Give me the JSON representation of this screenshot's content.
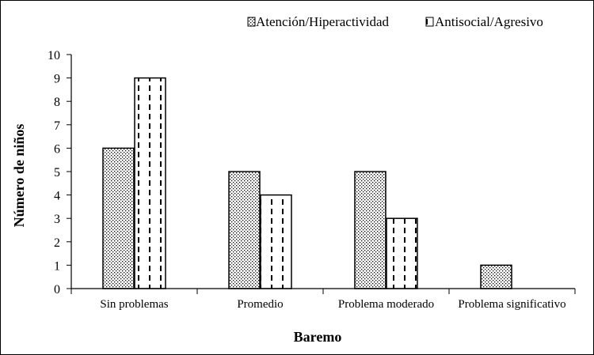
{
  "chart_data": {
    "type": "bar",
    "categories": [
      "Sin problemas",
      "Promedio",
      "Problema moderado",
      "Problema significativo"
    ],
    "series": [
      {
        "name": "Atención/Hiperactividad",
        "values": [
          6,
          5,
          5,
          1
        ],
        "pattern": "dots"
      },
      {
        "name": "Antisocial/Agresivo",
        "values": [
          9,
          4,
          3,
          0
        ],
        "pattern": "dashed-vertical"
      }
    ],
    "title": "",
    "xlabel": "Baremo",
    "ylabel": "Número de niños",
    "ylim": [
      0,
      10
    ],
    "yticks": [
      0,
      1,
      2,
      3,
      4,
      5,
      6,
      7,
      8,
      9,
      10
    ],
    "grid": false,
    "legend_position": "top-right",
    "colors": {
      "fill": "#ffffff",
      "stroke": "#000000"
    }
  }
}
